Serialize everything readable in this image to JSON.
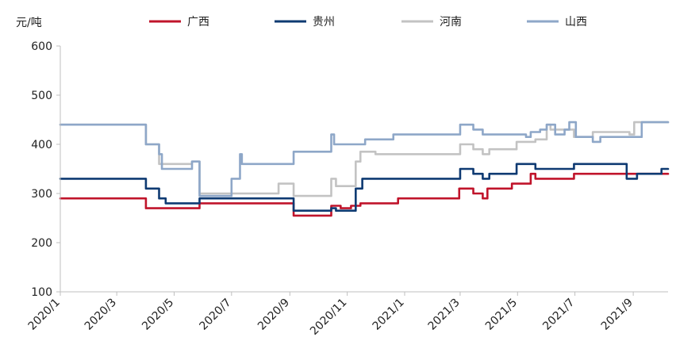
{
  "chart_data": {
    "type": "line",
    "ylabel": "元/吨",
    "ylim": [
      100,
      600
    ],
    "yticks": [
      "100",
      "200",
      "300",
      "400",
      "500",
      "600"
    ],
    "xticks": [
      "2020/1",
      "2020/3",
      "2020/5",
      "2020/7",
      "2020/9",
      "2020/11",
      "2021/1",
      "2021/3",
      "2021/5",
      "2021/7",
      "2021/9"
    ],
    "xrange": [
      "2020-01-01",
      "2021-10-08"
    ],
    "grid": false,
    "legend_position": "top",
    "series": [
      {
        "name": "广西",
        "color": "#c0142b",
        "points": [
          [
            "2020-01-01",
            290
          ],
          [
            "2020-04-01",
            290
          ],
          [
            "2020-04-01",
            270
          ],
          [
            "2020-05-28",
            270
          ],
          [
            "2020-05-28",
            280
          ],
          [
            "2020-09-05",
            280
          ],
          [
            "2020-09-05",
            255
          ],
          [
            "2020-10-15",
            255
          ],
          [
            "2020-10-15",
            275
          ],
          [
            "2020-10-25",
            275
          ],
          [
            "2020-10-25",
            270
          ],
          [
            "2020-11-05",
            270
          ],
          [
            "2020-11-05",
            275
          ],
          [
            "2020-11-15",
            275
          ],
          [
            "2020-11-15",
            280
          ],
          [
            "2020-12-25",
            280
          ],
          [
            "2020-12-25",
            290
          ],
          [
            "2021-02-28",
            290
          ],
          [
            "2021-02-28",
            310
          ],
          [
            "2021-03-15",
            310
          ],
          [
            "2021-03-15",
            300
          ],
          [
            "2021-03-25",
            300
          ],
          [
            "2021-03-25",
            290
          ],
          [
            "2021-03-30",
            290
          ],
          [
            "2021-03-30",
            310
          ],
          [
            "2021-04-25",
            310
          ],
          [
            "2021-04-25",
            320
          ],
          [
            "2021-05-15",
            320
          ],
          [
            "2021-05-15",
            340
          ],
          [
            "2021-05-20",
            340
          ],
          [
            "2021-05-20",
            330
          ],
          [
            "2021-06-30",
            330
          ],
          [
            "2021-06-30",
            340
          ],
          [
            "2021-10-08",
            340
          ]
        ]
      },
      {
        "name": "贵州",
        "color": "#0e3a72",
        "points": [
          [
            "2020-01-01",
            330
          ],
          [
            "2020-04-01",
            330
          ],
          [
            "2020-04-01",
            310
          ],
          [
            "2020-04-15",
            310
          ],
          [
            "2020-04-15",
            290
          ],
          [
            "2020-04-22",
            290
          ],
          [
            "2020-04-22",
            280
          ],
          [
            "2020-05-28",
            280
          ],
          [
            "2020-05-28",
            290
          ],
          [
            "2020-09-05",
            290
          ],
          [
            "2020-09-05",
            265
          ],
          [
            "2020-10-15",
            265
          ],
          [
            "2020-10-15",
            270
          ],
          [
            "2020-10-20",
            270
          ],
          [
            "2020-10-20",
            265
          ],
          [
            "2020-11-10",
            265
          ],
          [
            "2020-11-10",
            310
          ],
          [
            "2020-11-17",
            310
          ],
          [
            "2020-11-17",
            330
          ],
          [
            "2021-03-01",
            330
          ],
          [
            "2021-03-01",
            350
          ],
          [
            "2021-03-15",
            350
          ],
          [
            "2021-03-15",
            340
          ],
          [
            "2021-03-25",
            340
          ],
          [
            "2021-03-25",
            330
          ],
          [
            "2021-04-01",
            330
          ],
          [
            "2021-04-01",
            340
          ],
          [
            "2021-04-30",
            340
          ],
          [
            "2021-04-30",
            360
          ],
          [
            "2021-05-20",
            360
          ],
          [
            "2021-05-20",
            350
          ],
          [
            "2021-06-30",
            350
          ],
          [
            "2021-06-30",
            360
          ],
          [
            "2021-08-25",
            360
          ],
          [
            "2021-08-25",
            330
          ],
          [
            "2021-09-05",
            330
          ],
          [
            "2021-09-05",
            340
          ],
          [
            "2021-10-01",
            340
          ],
          [
            "2021-10-01",
            350
          ],
          [
            "2021-10-08",
            350
          ]
        ]
      },
      {
        "name": "河南",
        "color": "#c3c3c3",
        "points": [
          [
            "2020-01-01",
            440
          ],
          [
            "2020-04-01",
            440
          ],
          [
            "2020-04-01",
            400
          ],
          [
            "2020-04-15",
            400
          ],
          [
            "2020-04-15",
            360
          ],
          [
            "2020-05-20",
            360
          ],
          [
            "2020-05-20",
            365
          ],
          [
            "2020-05-28",
            365
          ],
          [
            "2020-05-28",
            300
          ],
          [
            "2020-08-20",
            300
          ],
          [
            "2020-08-20",
            320
          ],
          [
            "2020-09-05",
            320
          ],
          [
            "2020-09-05",
            295
          ],
          [
            "2020-10-15",
            295
          ],
          [
            "2020-10-15",
            330
          ],
          [
            "2020-10-20",
            330
          ],
          [
            "2020-10-20",
            315
          ],
          [
            "2020-11-10",
            315
          ],
          [
            "2020-11-10",
            365
          ],
          [
            "2020-11-15",
            365
          ],
          [
            "2020-11-15",
            385
          ],
          [
            "2020-12-01",
            385
          ],
          [
            "2020-12-01",
            380
          ],
          [
            "2021-03-01",
            380
          ],
          [
            "2021-03-01",
            400
          ],
          [
            "2021-03-15",
            400
          ],
          [
            "2021-03-15",
            390
          ],
          [
            "2021-03-25",
            390
          ],
          [
            "2021-03-25",
            380
          ],
          [
            "2021-04-01",
            380
          ],
          [
            "2021-04-01",
            390
          ],
          [
            "2021-04-30",
            390
          ],
          [
            "2021-04-30",
            405
          ],
          [
            "2021-05-20",
            405
          ],
          [
            "2021-05-20",
            410
          ],
          [
            "2021-06-01",
            410
          ],
          [
            "2021-06-01",
            440
          ],
          [
            "2021-06-05",
            440
          ],
          [
            "2021-06-05",
            430
          ],
          [
            "2021-06-30",
            430
          ],
          [
            "2021-06-30",
            415
          ],
          [
            "2021-07-20",
            415
          ],
          [
            "2021-07-20",
            425
          ],
          [
            "2021-08-28",
            425
          ],
          [
            "2021-08-28",
            420
          ],
          [
            "2021-09-02",
            420
          ],
          [
            "2021-09-02",
            445
          ],
          [
            "2021-10-08",
            445
          ]
        ]
      },
      {
        "name": "山西",
        "color": "#8ea7c8",
        "points": [
          [
            "2020-01-01",
            440
          ],
          [
            "2020-04-01",
            440
          ],
          [
            "2020-04-01",
            400
          ],
          [
            "2020-04-15",
            400
          ],
          [
            "2020-04-15",
            380
          ],
          [
            "2020-04-18",
            380
          ],
          [
            "2020-04-18",
            350
          ],
          [
            "2020-05-20",
            350
          ],
          [
            "2020-05-20",
            365
          ],
          [
            "2020-05-28",
            365
          ],
          [
            "2020-05-28",
            295
          ],
          [
            "2020-07-01",
            295
          ],
          [
            "2020-07-01",
            330
          ],
          [
            "2020-07-10",
            330
          ],
          [
            "2020-07-10",
            380
          ],
          [
            "2020-07-12",
            380
          ],
          [
            "2020-07-12",
            360
          ],
          [
            "2020-09-05",
            360
          ],
          [
            "2020-09-05",
            385
          ],
          [
            "2020-10-15",
            385
          ],
          [
            "2020-10-15",
            420
          ],
          [
            "2020-10-18",
            420
          ],
          [
            "2020-10-18",
            400
          ],
          [
            "2020-11-20",
            400
          ],
          [
            "2020-11-20",
            410
          ],
          [
            "2020-12-20",
            410
          ],
          [
            "2020-12-20",
            420
          ],
          [
            "2021-03-01",
            420
          ],
          [
            "2021-03-01",
            440
          ],
          [
            "2021-03-15",
            440
          ],
          [
            "2021-03-15",
            430
          ],
          [
            "2021-03-25",
            430
          ],
          [
            "2021-03-25",
            420
          ],
          [
            "2021-05-10",
            420
          ],
          [
            "2021-05-10",
            415
          ],
          [
            "2021-05-15",
            415
          ],
          [
            "2021-05-15",
            425
          ],
          [
            "2021-05-25",
            425
          ],
          [
            "2021-05-25",
            430
          ],
          [
            "2021-06-01",
            430
          ],
          [
            "2021-06-01",
            440
          ],
          [
            "2021-06-10",
            440
          ],
          [
            "2021-06-10",
            420
          ],
          [
            "2021-06-20",
            420
          ],
          [
            "2021-06-20",
            430
          ],
          [
            "2021-06-25",
            430
          ],
          [
            "2021-06-25",
            445
          ],
          [
            "2021-07-02",
            445
          ],
          [
            "2021-07-02",
            415
          ],
          [
            "2021-07-20",
            415
          ],
          [
            "2021-07-20",
            405
          ],
          [
            "2021-07-28",
            405
          ],
          [
            "2021-07-28",
            415
          ],
          [
            "2021-09-10",
            415
          ],
          [
            "2021-09-10",
            445
          ],
          [
            "2021-10-08",
            445
          ]
        ]
      }
    ]
  }
}
